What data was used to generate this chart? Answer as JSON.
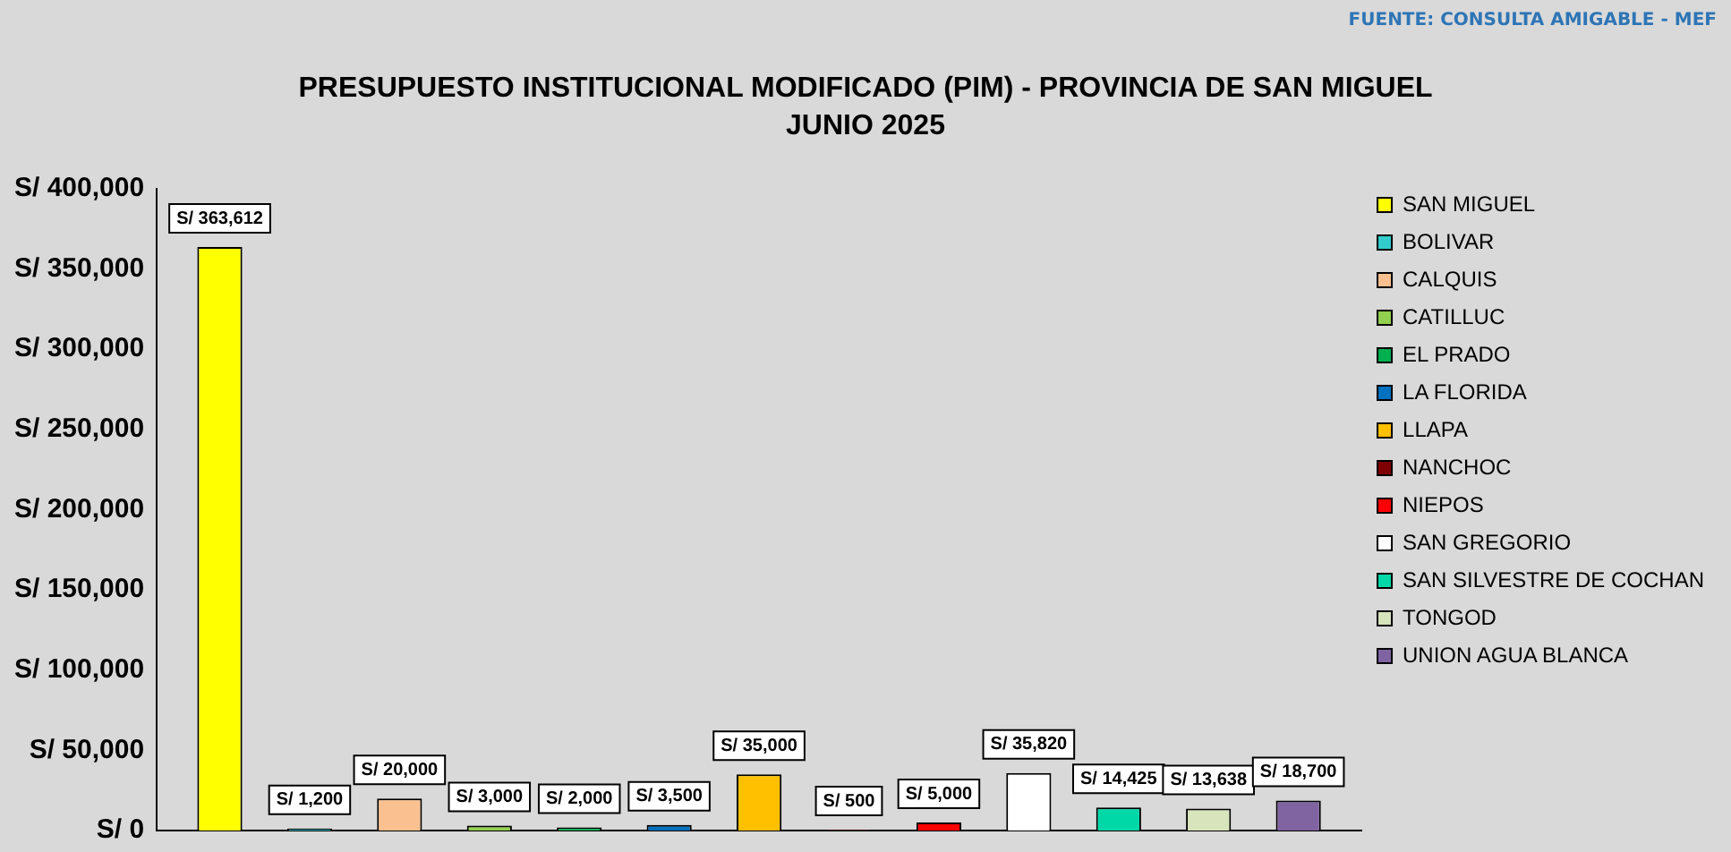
{
  "chart_data": {
    "type": "bar",
    "title": "PRESUPUESTO INSTITUCIONAL MODIFICADO (PIM) - PROVINCIA DE SAN MIGUEL",
    "subtitle": "JUNIO 2025",
    "annotations": [
      "FUENTE:  CONSULTA AMIGABLE - MEF"
    ],
    "categories": [
      null
    ],
    "series": [
      {
        "name": "SAN MIGUEL",
        "color": "#ffff00",
        "values": [
          363612
        ],
        "value_labels": [
          "S/ 363,612"
        ]
      },
      {
        "name": "BOLIVAR",
        "color": "#33cccc",
        "values": [
          1200
        ],
        "value_labels": [
          "S/ 1,200"
        ]
      },
      {
        "name": "CALQUIS",
        "color": "#fac090",
        "values": [
          20000
        ],
        "value_labels": [
          "S/ 20,000"
        ]
      },
      {
        "name": "CATILLUC",
        "color": "#92d050",
        "values": [
          3000
        ],
        "value_labels": [
          "S/ 3,000"
        ]
      },
      {
        "name": "EL PRADO",
        "color": "#00b050",
        "values": [
          2000
        ],
        "value_labels": [
          "S/ 2,000"
        ]
      },
      {
        "name": "LA FLORIDA",
        "color": "#0070c0",
        "values": [
          3500
        ],
        "value_labels": [
          "S/ 3,500"
        ]
      },
      {
        "name": "LLAPA",
        "color": "#ffc000",
        "values": [
          35000
        ],
        "value_labels": [
          "S/ 35,000"
        ]
      },
      {
        "name": "NANCHOC",
        "color": "#7f0000",
        "values": [
          500
        ],
        "value_labels": [
          "S/ 500"
        ]
      },
      {
        "name": "NIEPOS",
        "color": "#ff0000",
        "values": [
          5000
        ],
        "value_labels": [
          "S/ 5,000"
        ]
      },
      {
        "name": "SAN GREGORIO",
        "color": "#ffffff",
        "values": [
          35820
        ],
        "value_labels": [
          "S/ 35,820"
        ]
      },
      {
        "name": "SAN SILVESTRE DE COCHAN",
        "color": "#00d8a8",
        "values": [
          14425
        ],
        "value_labels": [
          "S/ 14,425"
        ]
      },
      {
        "name": "TONGOD",
        "color": "#d8e4bc",
        "values": [
          13638
        ],
        "value_labels": [
          "S/ 13,638"
        ]
      },
      {
        "name": "UNION AGUA BLANCA",
        "color": "#8064a2",
        "values": [
          18700
        ],
        "value_labels": [
          "S/ 18,700"
        ]
      }
    ],
    "ylim": [
      0,
      400000
    ],
    "yticks": [
      {
        "value": 0,
        "label": "S/ 0"
      },
      {
        "value": 50000,
        "label": "S/ 50,000"
      },
      {
        "value": 100000,
        "label": "S/ 100,000"
      },
      {
        "value": 150000,
        "label": "S/ 150,000"
      },
      {
        "value": 200000,
        "label": "S/ 200,000"
      },
      {
        "value": 250000,
        "label": "S/ 250,000"
      },
      {
        "value": 300000,
        "label": "S/ 300,000"
      },
      {
        "value": 350000,
        "label": "S/ 350,000"
      },
      {
        "value": 400000,
        "label": "S/ 400,000"
      }
    ],
    "tick_labels": "y",
    "grid": false,
    "legend": "right"
  }
}
